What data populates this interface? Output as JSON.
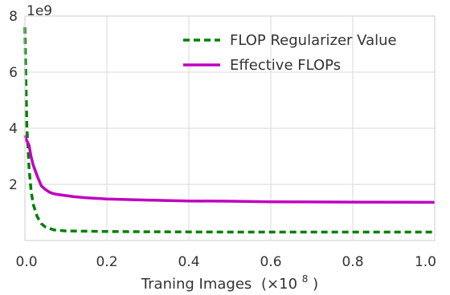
{
  "chart_data": {
    "type": "line",
    "xlabel": "Traning Images",
    "xlabel_unit_base": "(×10",
    "xlabel_unit_exp": "8",
    "xlabel_unit_close": ")",
    "ylabel": "",
    "y_offset_text": "1e9",
    "xlim": [
      0.0,
      1.0
    ],
    "ylim": [
      0.0,
      8.0
    ],
    "x_ticks": [
      "0.0",
      "0.2",
      "0.4",
      "0.6",
      "0.8",
      "1.0"
    ],
    "y_ticks": [
      "2",
      "4",
      "6",
      "8"
    ],
    "grid": true,
    "legend_position": "top-right",
    "series": [
      {
        "name": "FLOP Regularizer Value",
        "color": "#008000",
        "style": "dashed",
        "x": [
          0.0,
          0.002,
          0.005,
          0.01,
          0.015,
          0.02,
          0.03,
          0.04,
          0.05,
          0.07,
          0.1,
          0.15,
          0.2,
          0.3,
          0.5,
          0.7,
          1.0
        ],
        "values": [
          7.6,
          6.0,
          4.0,
          2.6,
          1.8,
          1.3,
          0.85,
          0.6,
          0.48,
          0.38,
          0.34,
          0.33,
          0.32,
          0.31,
          0.3,
          0.3,
          0.3
        ]
      },
      {
        "name": "Effective FLOPs",
        "color": "#bf00bf",
        "style": "solid",
        "x": [
          0.0,
          0.005,
          0.01,
          0.015,
          0.02,
          0.03,
          0.04,
          0.05,
          0.06,
          0.07,
          0.08,
          0.1,
          0.12,
          0.15,
          0.2,
          0.3,
          0.4,
          0.5,
          0.6,
          0.8,
          1.0
        ],
        "values": [
          3.75,
          3.55,
          3.4,
          3.0,
          2.7,
          2.3,
          1.95,
          1.82,
          1.72,
          1.67,
          1.64,
          1.6,
          1.56,
          1.52,
          1.48,
          1.44,
          1.41,
          1.4,
          1.38,
          1.37,
          1.36
        ]
      }
    ]
  }
}
